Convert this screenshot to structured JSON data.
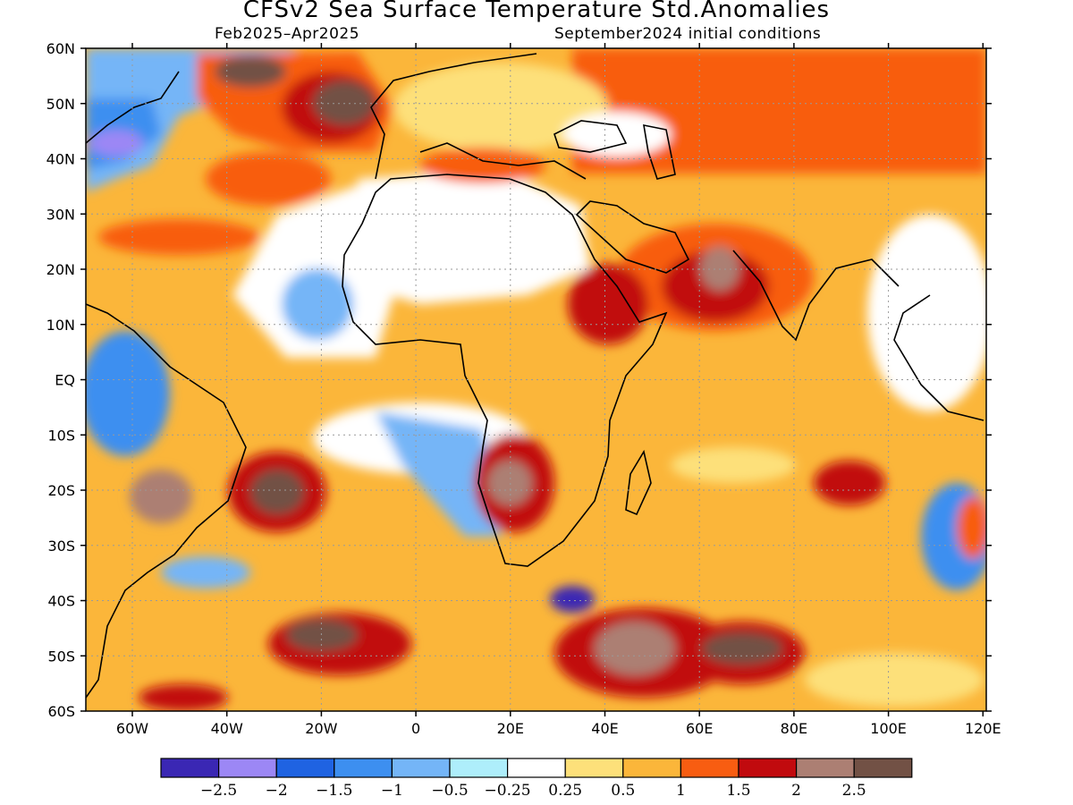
{
  "title": "CFSv2 Sea Surface Temperature Std.Anomalies",
  "period": "Feb2025–Apr2025",
  "initial_conditions": "September2024 initial conditions",
  "lat_ticks": [
    "60N",
    "50N",
    "40N",
    "30N",
    "20N",
    "10N",
    "EQ",
    "10S",
    "20S",
    "30S",
    "40S",
    "50S",
    "60S"
  ],
  "lon_ticks": [
    "60W",
    "40W",
    "20W",
    "0",
    "20E",
    "40E",
    "60E",
    "80E",
    "100E",
    "120E"
  ],
  "colorbar": {
    "colors": [
      "#3a27b4",
      "#9c87f5",
      "#1f63e2",
      "#3d8ff0",
      "#74b5f7",
      "#aeeefb",
      "#ffffff",
      "#fde07a",
      "#fbb63a",
      "#f85d11",
      "#c10a0e",
      "#ac7f73",
      "#725145"
    ],
    "labels": [
      "−2.5",
      "−2",
      "−1.5",
      "−1",
      "−0.5",
      "−0.25",
      "0.25",
      "0.5",
      "1",
      "1.5",
      "2",
      "2.5"
    ]
  }
}
